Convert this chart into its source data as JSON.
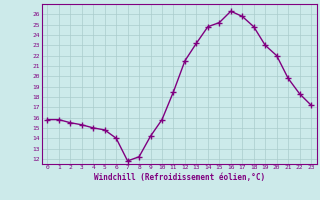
{
  "x": [
    0,
    1,
    2,
    3,
    4,
    5,
    6,
    7,
    8,
    9,
    10,
    11,
    12,
    13,
    14,
    15,
    16,
    17,
    18,
    19,
    20,
    21,
    22,
    23
  ],
  "y": [
    15.8,
    15.8,
    15.5,
    15.3,
    15.0,
    14.8,
    14.0,
    11.8,
    12.2,
    14.2,
    15.8,
    18.5,
    21.5,
    23.2,
    24.8,
    25.2,
    26.3,
    25.8,
    24.8,
    23.0,
    22.0,
    19.8,
    18.3,
    17.2
  ],
  "xlabel": "Windchill (Refroidissement éolien,°C)",
  "ylim": [
    11.5,
    27.0
  ],
  "xlim": [
    -0.5,
    23.5
  ],
  "yticks": [
    12,
    13,
    14,
    15,
    16,
    17,
    18,
    19,
    20,
    21,
    22,
    23,
    24,
    25,
    26
  ],
  "xticks": [
    0,
    1,
    2,
    3,
    4,
    5,
    6,
    7,
    8,
    9,
    10,
    11,
    12,
    13,
    14,
    15,
    16,
    17,
    18,
    19,
    20,
    21,
    22,
    23
  ],
  "line_color": "#800080",
  "marker": "+",
  "bg_color": "#cceaea",
  "grid_color": "#aacccc"
}
